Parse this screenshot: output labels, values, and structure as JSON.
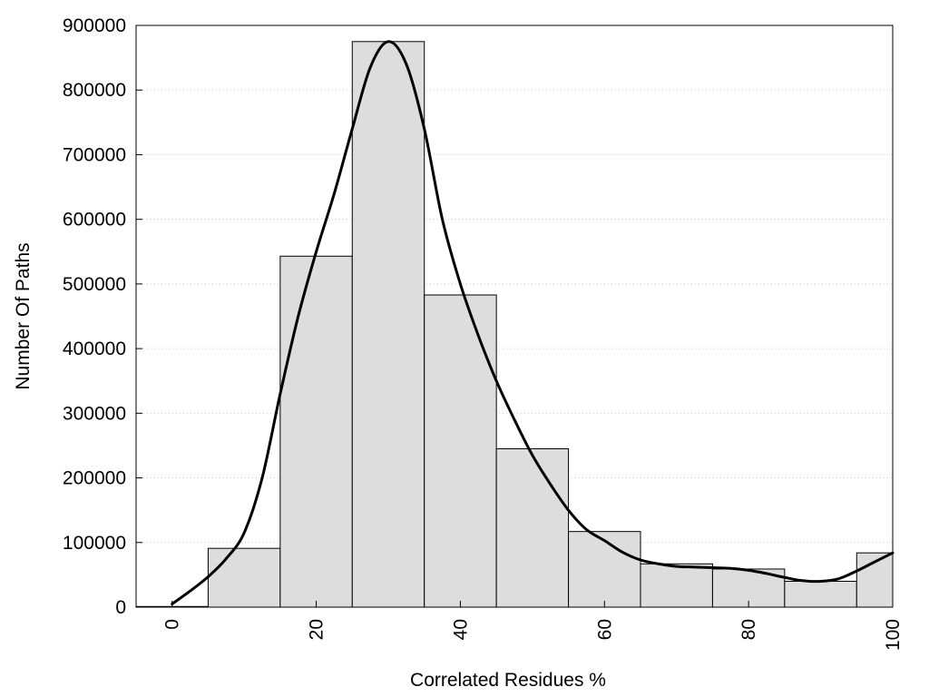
{
  "chart_data": {
    "type": "bar",
    "xlabel": "Correlated Residues %",
    "ylabel": "Number Of Paths",
    "xlim": [
      -5,
      100
    ],
    "ylim": [
      0,
      900000
    ],
    "grid": true,
    "legend": "none",
    "bin_width": 10,
    "x_ticks": [
      "0",
      "20",
      "40",
      "60",
      "80",
      "100"
    ],
    "y_ticks": [
      "0",
      "100000",
      "200000",
      "300000",
      "400000",
      "500000",
      "600000",
      "700000",
      "800000",
      "900000"
    ],
    "bins": [
      {
        "center": 0,
        "value": 1000
      },
      {
        "center": 10,
        "value": 91000
      },
      {
        "center": 20,
        "value": 543000
      },
      {
        "center": 30,
        "value": 875000
      },
      {
        "center": 40,
        "value": 483000
      },
      {
        "center": 50,
        "value": 245000
      },
      {
        "center": 60,
        "value": 117000
      },
      {
        "center": 70,
        "value": 67000
      },
      {
        "center": 80,
        "value": 59000
      },
      {
        "center": 90,
        "value": 40000
      },
      {
        "center": 100,
        "value": 84000
      }
    ],
    "density_curve": {
      "x": [
        0,
        2.5,
        5,
        7.5,
        10,
        12.5,
        15,
        17.5,
        20,
        22.5,
        25,
        27.5,
        30,
        32.5,
        35,
        37.5,
        40,
        42.5,
        45,
        47.5,
        50,
        52.5,
        55,
        57.5,
        60,
        62.5,
        65,
        67.5,
        70,
        72.5,
        75,
        77.5,
        80,
        82.5,
        85,
        87.5,
        90,
        92.5,
        95,
        97.5,
        100
      ],
      "y": [
        5000,
        25000,
        47000,
        75000,
        115000,
        200000,
        330000,
        450000,
        550000,
        640000,
        740000,
        835000,
        875000,
        840000,
        740000,
        600000,
        500000,
        420000,
        350000,
        290000,
        235000,
        190000,
        150000,
        120000,
        103000,
        85000,
        73000,
        67000,
        63000,
        62000,
        61000,
        60000,
        57000,
        52000,
        46000,
        41000,
        40000,
        44000,
        56000,
        70000,
        84000
      ]
    },
    "colors": {
      "bar_fill": "#dddddd",
      "bar_stroke": "#000000",
      "curve": "#000000",
      "grid": "#c8c8c8"
    }
  }
}
